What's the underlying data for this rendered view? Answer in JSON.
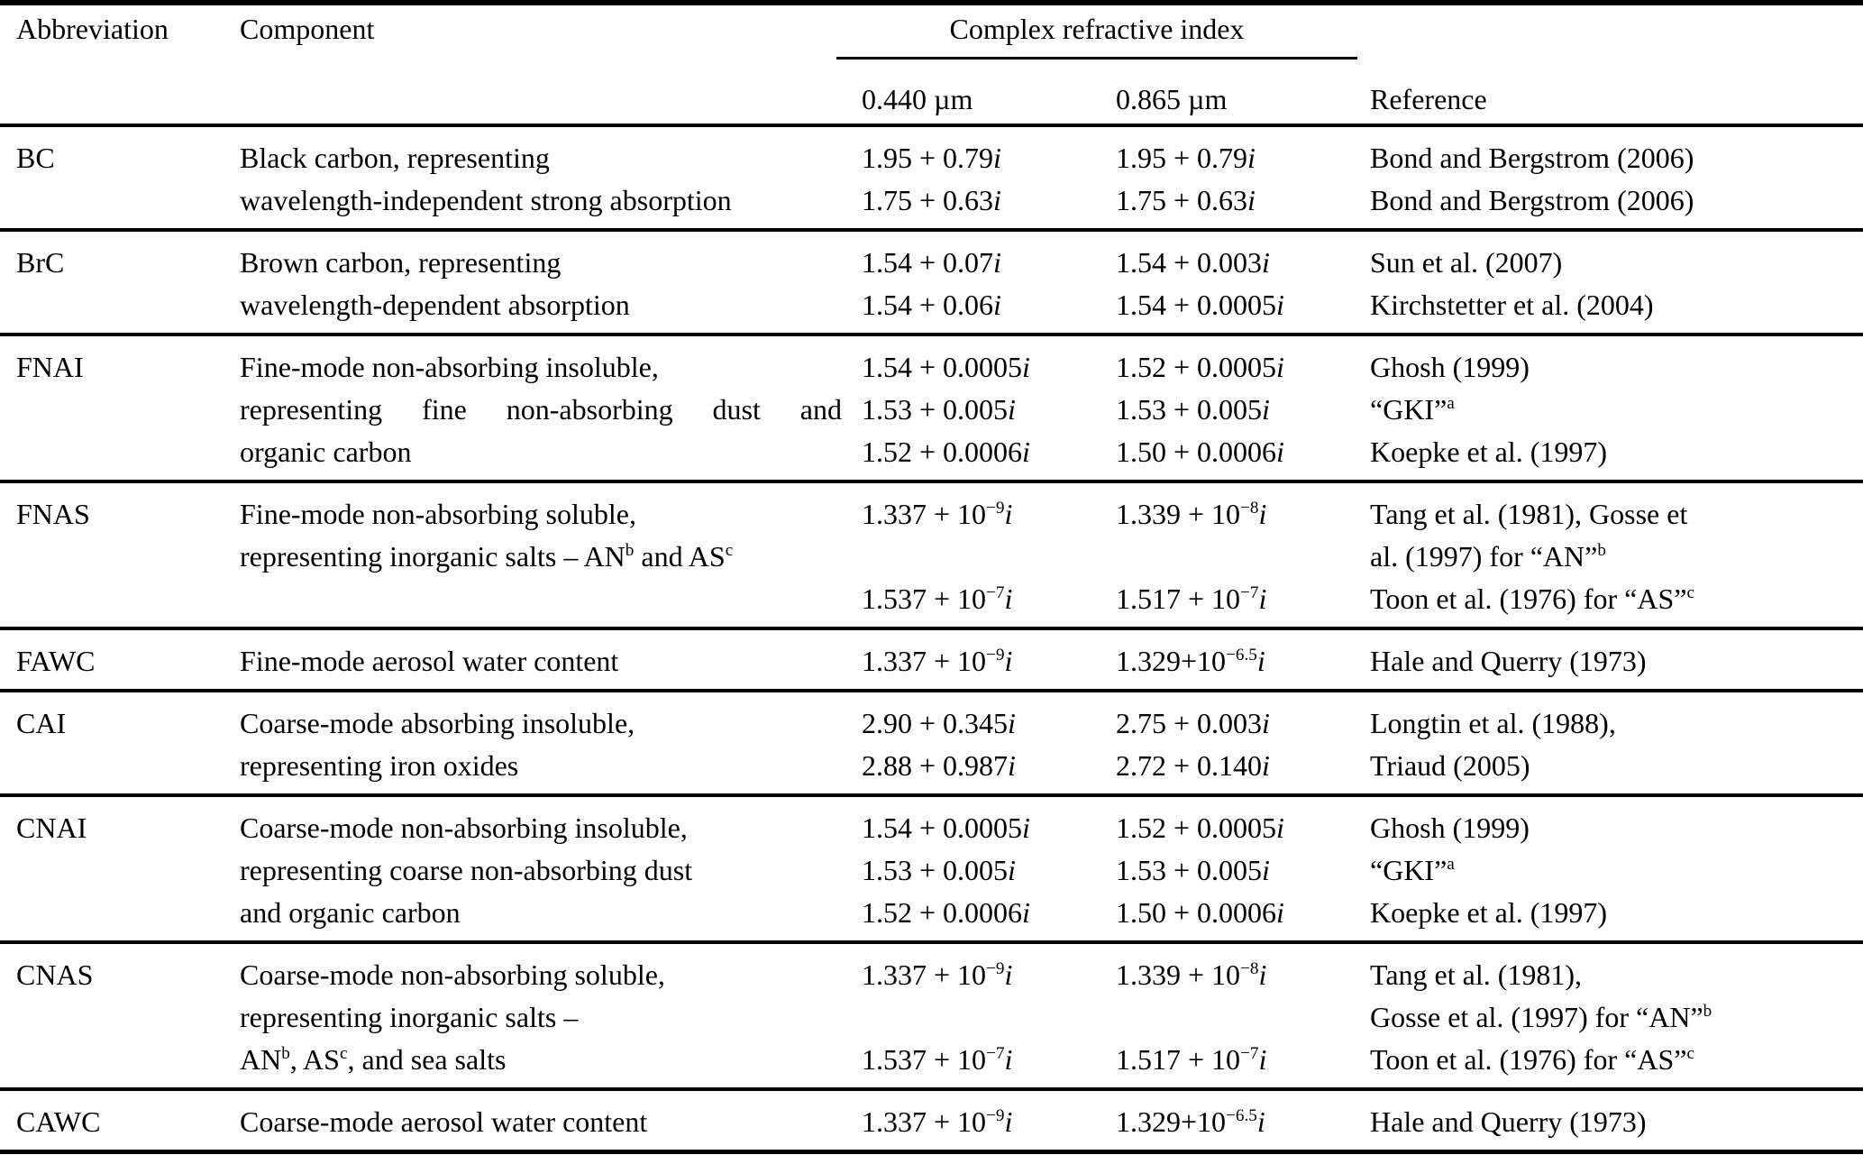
{
  "table": {
    "headers": {
      "abbreviation": "Abbreviation",
      "component": "Component",
      "cri_group": "Complex refractive index",
      "wavelength_1": "0.440 µm",
      "wavelength_2": "0.865 µm",
      "reference": "Reference"
    },
    "rows": [
      {
        "abbreviation": "BC",
        "lines": [
          {
            "component": "Black carbon, representing",
            "cri_440": "1.95 + 0.79*i*",
            "cri_865": "1.95 + 0.79*i*",
            "reference": "Bond and Bergstrom (2006)"
          },
          {
            "component": "wavelength-independent strong absorption",
            "cri_440": "1.75 + 0.63*i*",
            "cri_865": "1.75 + 0.63*i*",
            "reference": "Bond and Bergstrom (2006)"
          }
        ]
      },
      {
        "abbreviation": "BrC",
        "lines": [
          {
            "component": "Brown carbon, representing",
            "cri_440": "1.54 + 0.07*i*",
            "cri_865": "1.54 + 0.003*i*",
            "reference": "Sun et al. (2007)"
          },
          {
            "component": "wavelength-dependent absorption",
            "cri_440": "1.54 + 0.06*i*",
            "cri_865": "1.54 + 0.0005*i*",
            "reference": "Kirchstetter et al. (2004)"
          }
        ]
      },
      {
        "abbreviation": "FNAI",
        "lines": [
          {
            "component": "Fine-mode non-absorbing insoluble,",
            "cri_440": "1.54 + 0.0005*i*",
            "cri_865": "1.52 + 0.0005*i*",
            "reference": "Ghosh (1999)"
          },
          {
            "component": "representing fine non-absorbing dust and",
            "cri_440": "1.53 + 0.005*i*",
            "cri_865": "1.53 + 0.005*i*",
            "reference": "“GKI”^{a}"
          },
          {
            "component": "organic carbon",
            "cri_440": "1.52 + 0.0006*i*",
            "cri_865": "1.50 + 0.0006*i*",
            "reference": "Koepke et al. (1997)"
          }
        ]
      },
      {
        "abbreviation": "FNAS",
        "lines": [
          {
            "component": "Fine-mode non-absorbing soluble,",
            "cri_440": "1.337 + 10^{−9}*i*",
            "cri_865": "1.339 + 10^{−8}*i*",
            "reference": "Tang et al. (1981), Gosse et"
          },
          {
            "component": "representing inorganic salts – AN^{b} and AS^{c}",
            "cri_440": "",
            "cri_865": "",
            "reference": "al. (1997) for “AN”^{b}"
          },
          {
            "component": "",
            "cri_440": "1.537 + 10^{−7}*i*",
            "cri_865": "1.517 + 10^{−7}*i*",
            "reference": "Toon et al. (1976) for “AS”^{c}"
          }
        ]
      },
      {
        "abbreviation": "FAWC",
        "lines": [
          {
            "component": "Fine-mode aerosol water content",
            "cri_440": "1.337 + 10^{−9}*i*",
            "cri_865": "1.329+10^{−6.5}*i*",
            "reference": "Hale and Querry (1973)"
          }
        ]
      },
      {
        "abbreviation": "CAI",
        "lines": [
          {
            "component": "Coarse-mode absorbing insoluble,",
            "cri_440": "2.90 + 0.345*i*",
            "cri_865": "2.75 + 0.003*i*",
            "reference": "Longtin et al. (1988),"
          },
          {
            "component": "representing iron oxides",
            "cri_440": "2.88 + 0.987*i*",
            "cri_865": "2.72 + 0.140*i*",
            "reference": "Triaud (2005)"
          }
        ]
      },
      {
        "abbreviation": "CNAI",
        "lines": [
          {
            "component": "Coarse-mode non-absorbing insoluble,",
            "cri_440": "1.54 + 0.0005*i*",
            "cri_865": "1.52 + 0.0005*i*",
            "reference": "Ghosh (1999)"
          },
          {
            "component": "representing coarse non-absorbing dust",
            "cri_440": "1.53 + 0.005*i*",
            "cri_865": "1.53 + 0.005*i*",
            "reference": "“GKI”^{a}"
          },
          {
            "component": "and organic carbon",
            "cri_440": "1.52 + 0.0006*i*",
            "cri_865": "1.50 + 0.0006*i*",
            "reference": "Koepke et al. (1997)"
          }
        ]
      },
      {
        "abbreviation": "CNAS",
        "lines": [
          {
            "component": "Coarse-mode non-absorbing soluble,",
            "cri_440": "1.337 + 10^{−9}*i*",
            "cri_865": "1.339 + 10^{−8}*i*",
            "reference": "Tang et al. (1981),"
          },
          {
            "component": "representing inorganic salts –",
            "cri_440": "",
            "cri_865": "",
            "reference": "Gosse et al. (1997) for “AN”^{b}"
          },
          {
            "component": "AN^{b}, AS^{c}, and sea salts",
            "cri_440": "1.537 + 10^{−7}*i*",
            "cri_865": "1.517 + 10^{−7}*i*",
            "reference": "Toon et al. (1976) for “AS”^{c}"
          }
        ]
      },
      {
        "abbreviation": "CAWC",
        "lines": [
          {
            "component": "Coarse-mode aerosol water content",
            "cri_440": "1.337 + 10^{−9}*i*",
            "cri_865": "1.329+10^{−6.5}*i*",
            "reference": "Hale and Querry (1973)"
          }
        ]
      }
    ]
  }
}
